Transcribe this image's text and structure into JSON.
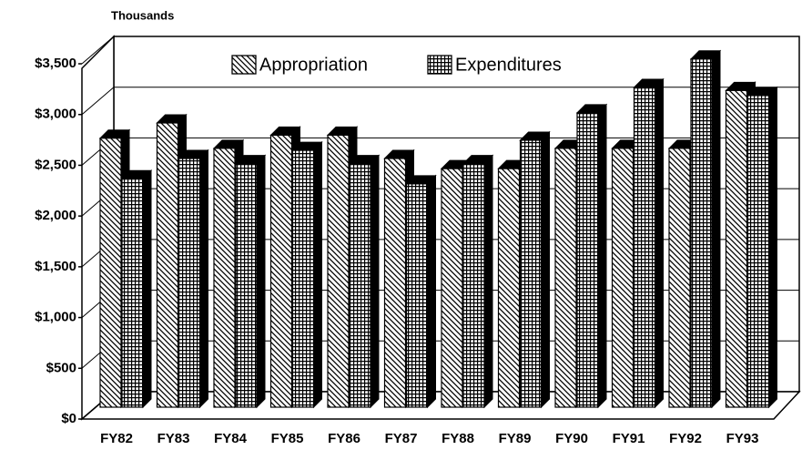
{
  "chart_data": {
    "type": "bar3d",
    "y_axis_label": "Thousands",
    "categories": [
      "FY82",
      "FY83",
      "FY84",
      "FY85",
      "FY86",
      "FY87",
      "FY88",
      "FY89",
      "FY90",
      "FY91",
      "FY92",
      "FY93"
    ],
    "series": [
      {
        "name": "Appropriation",
        "color": "#000000",
        "pattern": "diagonal",
        "values": [
          2650,
          2800,
          2550,
          2680,
          2680,
          2450,
          2350,
          2350,
          2550,
          2550,
          2550,
          3120
        ]
      },
      {
        "name": "Expenditures",
        "color": "#000000",
        "pattern": "grid",
        "values": [
          2250,
          2450,
          2400,
          2530,
          2400,
          2200,
          2400,
          2630,
          2900,
          3150,
          3430,
          3070
        ]
      }
    ],
    "ylim": [
      0,
      3500
    ],
    "yticks": [
      {
        "value": 0,
        "label": "$0"
      },
      {
        "value": 500,
        "label": "$500"
      },
      {
        "value": 1000,
        "label": "$1,000"
      },
      {
        "value": 1500,
        "label": "$1,500"
      },
      {
        "value": 2000,
        "label": "$2,000"
      },
      {
        "value": 2500,
        "label": "$2,500"
      },
      {
        "value": 3000,
        "label": "$3,000"
      },
      {
        "value": 3500,
        "label": "$3,500"
      }
    ],
    "grid": true,
    "legend": "top"
  }
}
